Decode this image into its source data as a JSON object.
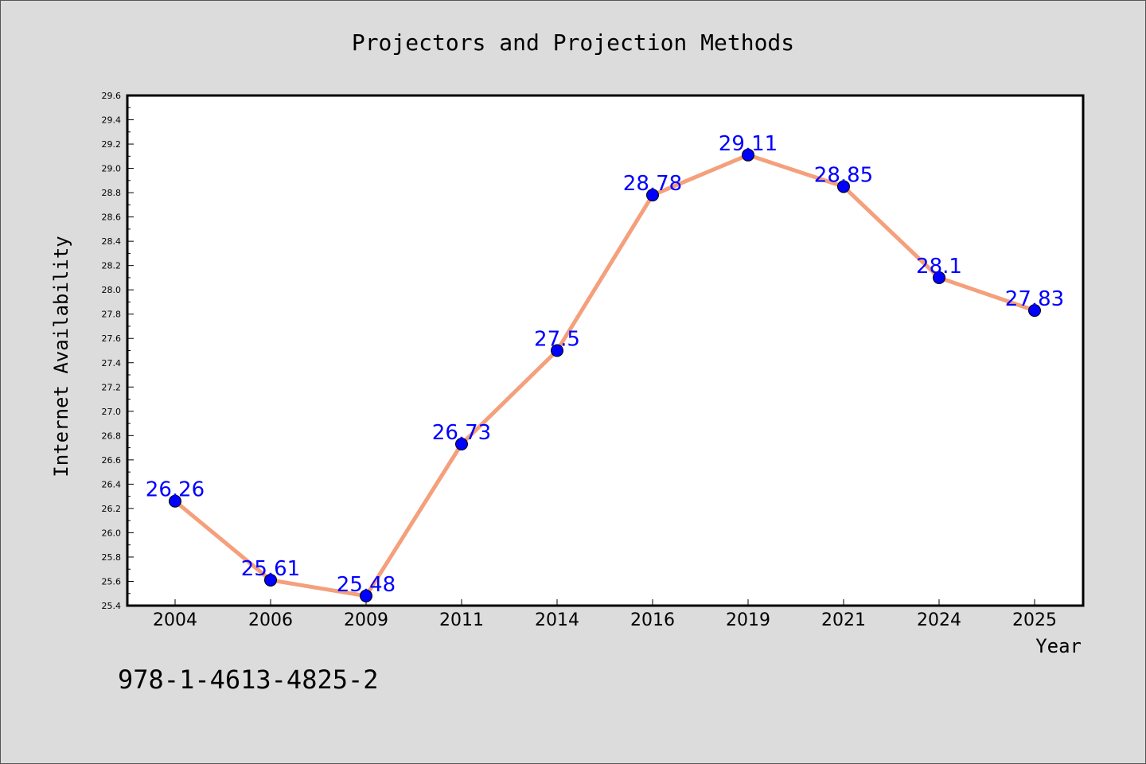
{
  "chart_data": {
    "type": "line",
    "title": "Projectors and Projection Methods",
    "xlabel": "Year",
    "ylabel": "Internet Availability",
    "categories": [
      "2004",
      "2006",
      "2009",
      "2011",
      "2014",
      "2016",
      "2019",
      "2021",
      "2024",
      "2025"
    ],
    "series": [
      {
        "values": [
          26.26,
          25.61,
          25.48,
          26.73,
          27.5,
          28.78,
          29.11,
          28.85,
          28.1,
          27.83
        ],
        "labels": [
          "26.26",
          "25.61",
          "25.48",
          "26.73",
          "27.5",
          "28.78",
          "29.11",
          "28.85",
          "28.1",
          "27.83"
        ],
        "line_color": "#f4a07c",
        "marker_color": "#0000ff"
      }
    ],
    "ylim": [
      25.4,
      29.6
    ],
    "yticks": [
      "25.4",
      "25.6",
      "25.8",
      "26.0",
      "26.2",
      "26.4",
      "26.6",
      "26.8",
      "27.0",
      "27.2",
      "27.4",
      "27.6",
      "27.8",
      "28.0",
      "28.2",
      "28.4",
      "28.6",
      "28.8",
      "29.0",
      "29.2",
      "29.4",
      "29.6"
    ],
    "grid": false,
    "label_color": "#0000ff"
  },
  "annotation": "978-1-4613-4825-2"
}
